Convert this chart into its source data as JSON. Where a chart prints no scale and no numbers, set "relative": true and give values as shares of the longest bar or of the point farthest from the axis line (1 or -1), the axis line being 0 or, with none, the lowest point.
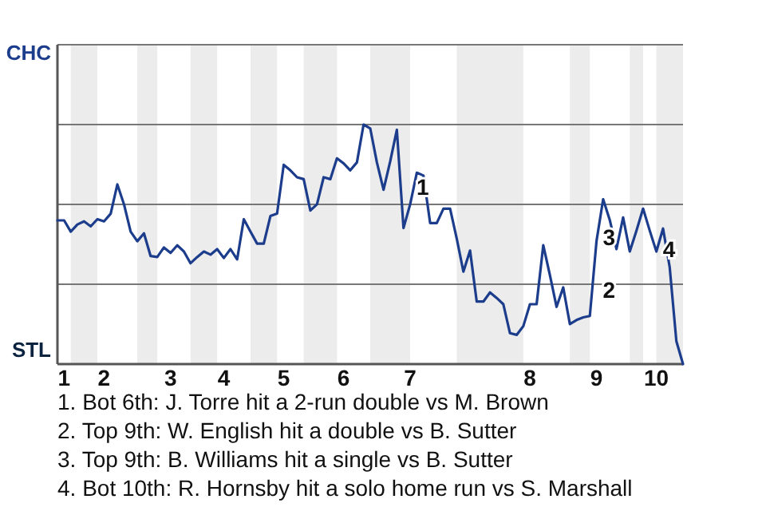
{
  "chart_data": {
    "type": "line",
    "relative": true,
    "categories": [
      null,
      "1",
      null,
      null,
      null,
      null,
      null,
      "2",
      null,
      null,
      null,
      null,
      null,
      null,
      null,
      null,
      null,
      "3",
      null,
      null,
      null,
      null,
      null,
      null,
      null,
      "4",
      null,
      null,
      null,
      null,
      null,
      null,
      null,
      null,
      "5",
      null,
      null,
      null,
      null,
      null,
      null,
      null,
      null,
      "6",
      null,
      null,
      null,
      null,
      null,
      null,
      null,
      null,
      null,
      "7",
      null,
      null,
      null,
      null,
      null,
      null,
      null,
      null,
      null,
      null,
      null,
      null,
      null,
      null,
      null,
      null,
      null,
      "8",
      null,
      null,
      null,
      null,
      null,
      null,
      null,
      null,
      null,
      "9",
      null,
      null,
      null,
      null,
      null,
      null,
      null,
      null,
      "10",
      null,
      null,
      null,
      null
    ],
    "series": [
      {
        "color": "#1c3c8c",
        "values": [
          0.6,
          0.6,
          0.553,
          0.583,
          0.596,
          0.575,
          0.605,
          0.596,
          0.628,
          0.75,
          0.667,
          0.553,
          0.513,
          0.546,
          0.451,
          0.447,
          0.487,
          0.464,
          0.496,
          0.47,
          0.421,
          0.447,
          0.47,
          0.457,
          0.48,
          0.443,
          0.48,
          0.437,
          0.605,
          0.553,
          0.503,
          0.503,
          0.618,
          0.628,
          0.832,
          0.809,
          0.78,
          0.772,
          0.641,
          0.667,
          0.78,
          0.772,
          0.859,
          0.838,
          0.809,
          0.842,
          1,
          0.984,
          0.842,
          0.728,
          0.846,
          0.978,
          0.568,
          0.667,
          0.799,
          0.787,
          0.589,
          0.589,
          0.649,
          0.649,
          0.524,
          0.386,
          0.474,
          0.261,
          0.261,
          0.299,
          0.276,
          0.25,
          0.129,
          0.122,
          0.158,
          0.25,
          0.25,
          0.496,
          0.371,
          0.239,
          0.32,
          0.167,
          0.184,
          0.195,
          0.201,
          0.513,
          0.688,
          0.601,
          0.48,
          0.612,
          0.47,
          0.557,
          0.649,
          0.557,
          0.47,
          0.566,
          0.404,
          0.096,
          0
        ]
      }
    ],
    "ref_lines": [
      {
        "axis": "y",
        "value": 0.333,
        "color": "#777777"
      },
      {
        "axis": "y",
        "value": 0.667,
        "color": "#777777"
      },
      {
        "axis": "y",
        "value": 1,
        "color": "#777777"
      }
    ],
    "marker": "none",
    "line_style": "solid",
    "annotations": [
      "CHC",
      "STL",
      {
        "text": "1",
        "x": "7",
        "y": 0.73
      },
      {
        "text": "2",
        "x": "9",
        "y": 0.3
      },
      {
        "text": "3",
        "x": "9",
        "y": 0.52
      },
      {
        "text": "4",
        "x": "10",
        "y": 0.47
      },
      "1. Bot 6th: J. Torre hit a 2-run double vs M. Brown",
      "2. Top 9th: W. English hit a double vs B. Sutter",
      "3. Top 9th: B. Williams hit a single vs B. Sutter",
      "4. Bot 10th: R. Hornsby hit a solo home run vs S. Marshall"
    ]
  }
}
